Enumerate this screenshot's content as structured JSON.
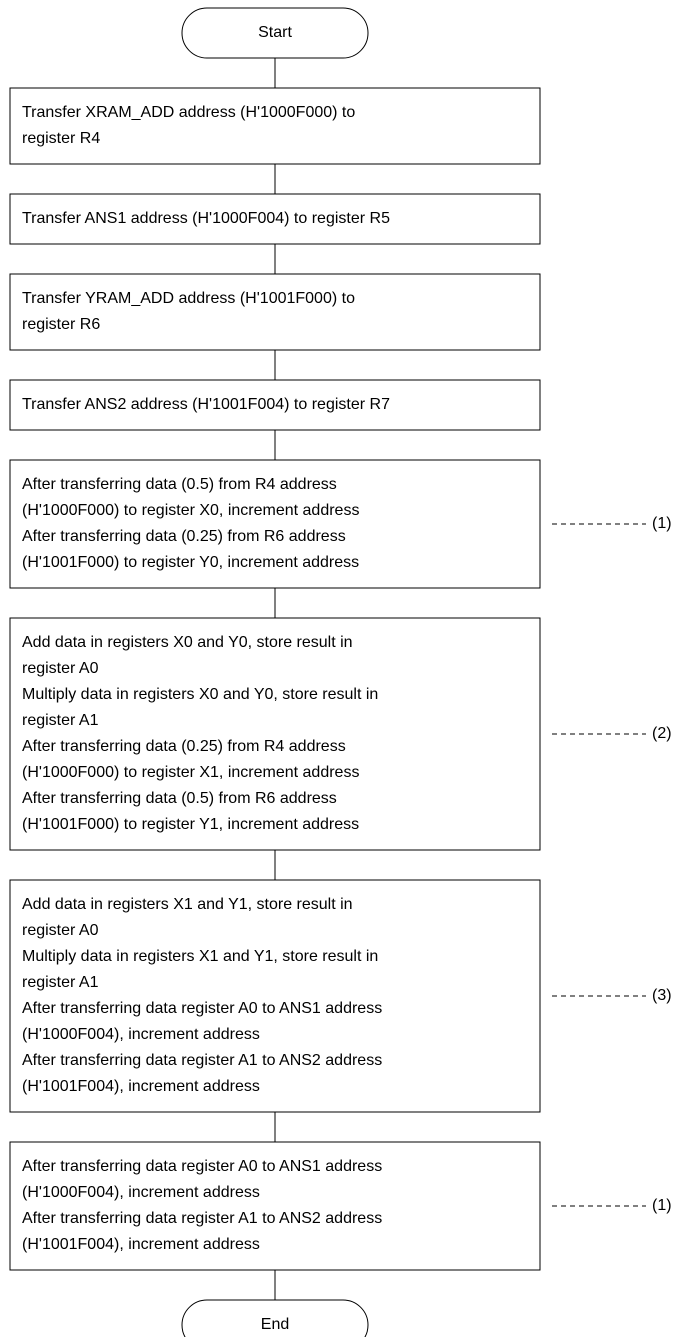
{
  "nodes": [
    {
      "label": "Start"
    },
    {
      "lines": [
        "Transfer XRAM_ADD address (H'1000F000) to",
        "register R4"
      ]
    },
    {
      "lines": [
        "Transfer ANS1 address (H'1000F004) to register R5"
      ]
    },
    {
      "lines": [
        "Transfer YRAM_ADD address (H'1001F000) to",
        "register R6"
      ]
    },
    {
      "lines": [
        "Transfer ANS2 address (H'1001F004) to register R7"
      ]
    },
    {
      "lines": [
        "After transferring data (0.5) from R4 address",
        "(H'1000F000) to register X0, increment address",
        "After transferring data (0.25) from R6 address",
        "(H'1001F000) to register Y0, increment address"
      ],
      "note": "(1)"
    },
    {
      "lines": [
        "Add data in registers X0 and Y0, store result in",
        "register A0",
        "Multiply data in registers X0 and Y0, store result in",
        "register A1",
        "After transferring data (0.25) from R4 address",
        "(H'1000F000) to register X1, increment address",
        "After transferring data (0.5) from R6 address",
        "(H'1001F000) to register Y1, increment address"
      ],
      "note": "(2)"
    },
    {
      "lines": [
        "Add data in registers X1 and Y1, store result in",
        "register A0",
        "Multiply data in registers X1 and Y1, store result in",
        "register A1",
        "After transferring data register A0 to ANS1 address",
        "(H'1000F004), increment address",
        "After transferring data register A1 to ANS2 address",
        "(H'1001F004), increment address"
      ],
      "note": "(3)"
    },
    {
      "lines": [
        "After transferring data register A0 to ANS1 address",
        "(H'1000F004), increment address",
        "After transferring data register A1 to ANS2 address",
        "(H'1001F004), increment address"
      ],
      "note": "(1)"
    },
    {
      "label": "End"
    }
  ]
}
